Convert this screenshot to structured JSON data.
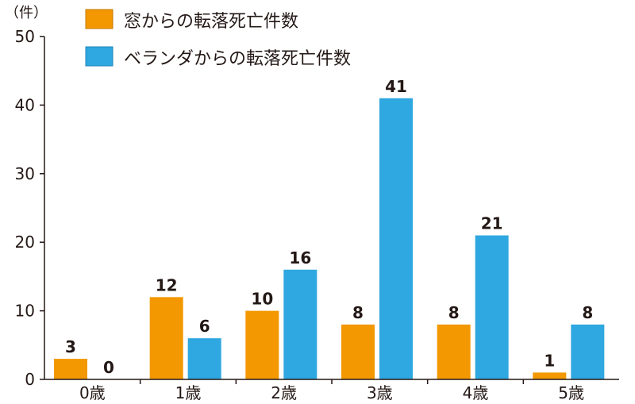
{
  "chart_data": {
    "type": "bar",
    "unit_label": "（件）",
    "categories": [
      "0歳",
      "1歳",
      "2歳",
      "3歳",
      "4歳",
      "5歳"
    ],
    "series": [
      {
        "name": "窓からの転落死亡件数",
        "color": "#f39800",
        "values": [
          3,
          12,
          10,
          8,
          8,
          1
        ]
      },
      {
        "name": "ベランダからの転落死亡件数",
        "color": "#2fa7e0",
        "values": [
          0,
          6,
          16,
          41,
          21,
          8
        ]
      }
    ],
    "yticks": [
      "0",
      "10",
      "20",
      "30",
      "40",
      "50"
    ],
    "ylim": [
      0,
      50
    ],
    "legend_position": "top",
    "grid": false
  }
}
